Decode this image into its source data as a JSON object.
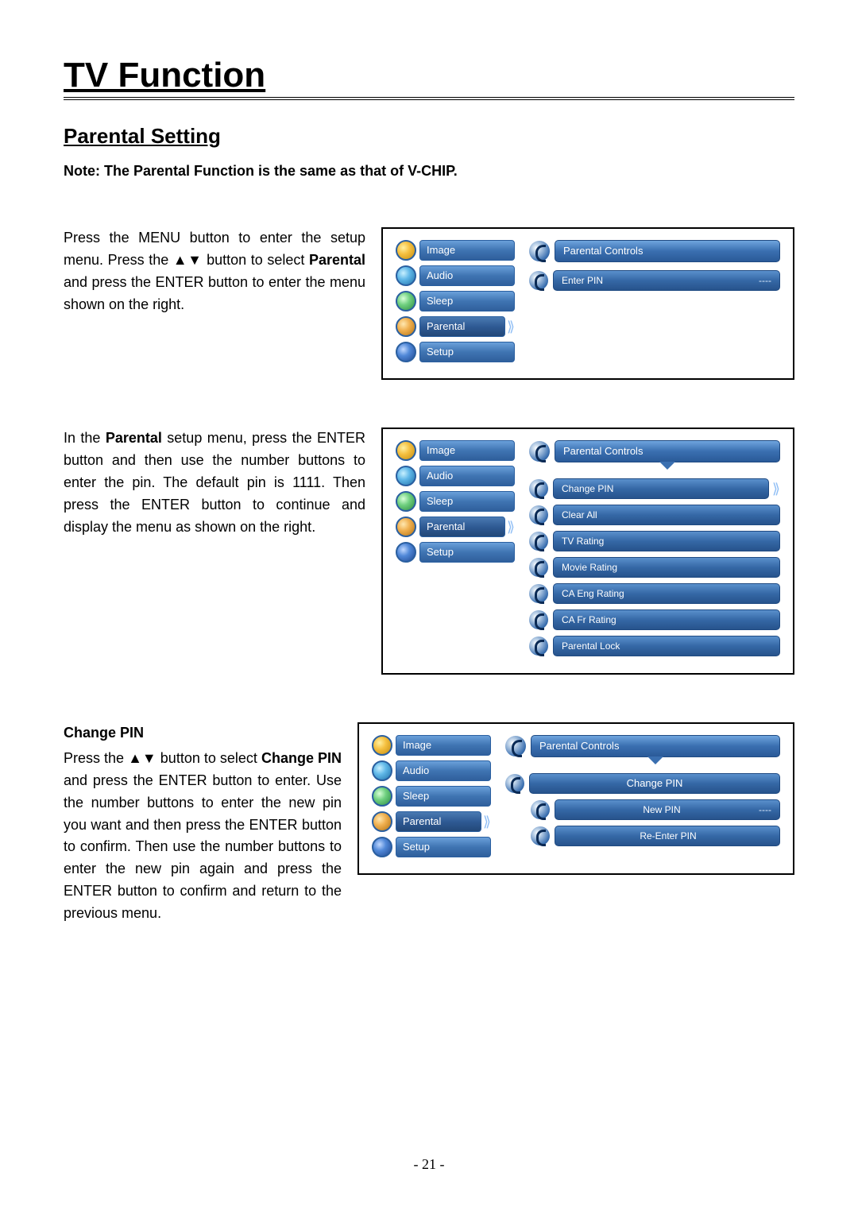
{
  "title": "TV Function",
  "subtitle": "Parental Setting",
  "note": "Note: The Parental Function is the same as that of V-CHIP.",
  "page_number": "- 21 -",
  "colors": {
    "menu_item_bg": "linear-gradient(180deg,#6aa0da 0%, #3f74b2 50%, #2f5f9c 100%)",
    "menu_item_selected_bg": "linear-gradient(180deg,#4a7ab2 0%, #2f5a94 50%, #224878 100%)",
    "icon_image_bg": "radial-gradient(circle at 35% 35%, #fff0a0 0%, #f5c040 40%, #c08a10 100%)",
    "icon_audio_bg": "radial-gradient(circle at 35% 35%, #c8f0ff 0%, #60b8e8 40%, #2070a8 100%)",
    "icon_sleep_bg": "radial-gradient(circle at 35% 35%, #d8ffd8 0%, #70d080 40%, #2a8a40 100%)",
    "icon_parental_bg": "radial-gradient(circle at 35% 35%, #ffe8b0 0%, #f0b050 40%, #b07010 100%)",
    "icon_setup_bg": "radial-gradient(circle at 35% 35%, #c0d8ff 0%, #5088d8 40%, #204890 100%)",
    "icon_border": "2px solid #2a5fa0"
  },
  "left_menu": [
    {
      "key": "image",
      "label": "Image"
    },
    {
      "key": "audio",
      "label": "Audio"
    },
    {
      "key": "sleep",
      "label": "Sleep"
    },
    {
      "key": "parental",
      "label": "Parental"
    },
    {
      "key": "setup",
      "label": "Setup"
    }
  ],
  "sections": [
    {
      "heading": "",
      "text_parts": [
        {
          "t": "Press the MENU button to enter the setup menu. Press the ▲▼ button to select ",
          "b": false
        },
        {
          "t": "Parental",
          "b": true
        },
        {
          "t": " and press the ENTER button to enter the menu shown on the right.",
          "b": false
        }
      ],
      "panel": {
        "header": "Parental Controls",
        "header_dropdown": false,
        "selected_menu": "parental",
        "options": [
          {
            "label": "Enter PIN",
            "value": "----",
            "chevron": false
          }
        ]
      }
    },
    {
      "heading": "",
      "text_parts": [
        {
          "t": "In the ",
          "b": false
        },
        {
          "t": "Parental",
          "b": true
        },
        {
          "t": " setup menu, press the ENTER button and then use the number buttons to enter the pin. The default pin is 1111. Then press the ENTER button to continue and display the menu as shown on the right.",
          "b": false
        }
      ],
      "panel": {
        "header": "Parental Controls",
        "header_dropdown": true,
        "selected_menu": "parental",
        "options": [
          {
            "label": "Change PIN",
            "chevron": true
          },
          {
            "label": "Clear All"
          },
          {
            "label": "TV Rating"
          },
          {
            "label": "Movie Rating"
          },
          {
            "label": "CA Eng Rating"
          },
          {
            "label": "CA Fr Rating"
          },
          {
            "label": "Parental Lock"
          }
        ]
      }
    },
    {
      "heading": "Change PIN",
      "text_parts": [
        {
          "t": "Press the ▲▼ button to select ",
          "b": false
        },
        {
          "t": "Change PIN",
          "b": true
        },
        {
          "t": " and press the ENTER button to enter. Use the number buttons to enter the new pin you want and then press the ENTER button to confirm. Then use the number buttons to enter the new pin again and press the ENTER button to confirm and return to the previous menu.",
          "b": false
        }
      ],
      "panel": {
        "header": "Parental Controls",
        "header_dropdown": true,
        "selected_menu": "parental",
        "sub_header": "Change PIN",
        "options": [
          {
            "label": "New PIN",
            "value": "----"
          },
          {
            "label": "Re-Enter PIN"
          }
        ]
      }
    }
  ]
}
